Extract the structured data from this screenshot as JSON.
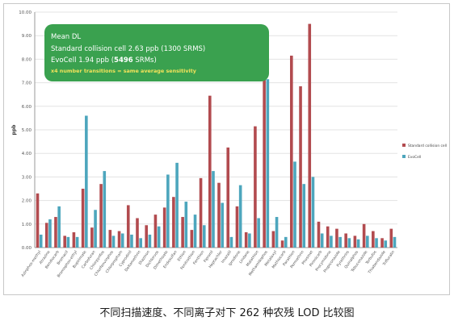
{
  "caption": "不同扫描速度、不同离子对下 262 种农残 LOD 比较图",
  "colors": {
    "series_standard": "#b24b4f",
    "series_evocell": "#4da6bd",
    "infobox_bg": "#3aa14f",
    "infobox_highlight": "#f2e25a",
    "gridline": "#e3e3e3",
    "axis_text": "#555555"
  },
  "infobox": {
    "line1": "Mean DL",
    "line2": "Standard collision cell 2.63 ppb (1300 SRMS)",
    "line3_prefix": "EvoCell 1.94 ppb (",
    "line3_bold": "5496",
    "line3_suffix": " SRMs)",
    "line4": "x4 number transitions = same average sensitivity"
  },
  "chart_data": {
    "type": "bar",
    "title": "",
    "xlabel": "",
    "ylabel": "ppb",
    "ylim": [
      0,
      10
    ],
    "ytick_step": 1,
    "grid": true,
    "legend_position": "right",
    "categories": [
      "Azinphos-methyl",
      "Atrazine",
      "Bendiocarb",
      "Bromacil",
      "Bromophos-ethyl",
      "Bupirimate",
      "Carbofuran",
      "Chlorpyrifos",
      "Chlorfenvinphos",
      "Chlorpropham",
      "Cyprodinil",
      "Deltamethrin",
      "Diazinon",
      "Dichlorvos",
      "Dimethoate",
      "Endosulfan",
      "Ethion",
      "Fenitrothion",
      "Fenthion",
      "Fipronil",
      "Heptachlor",
      "Imazalil",
      "Iprodione",
      "Lindane",
      "Malathion",
      "Methamidophos",
      "Metalaxyl",
      "Methiocarb",
      "Parathion",
      "Permethrin",
      "Phosmet",
      "Pirimicarb",
      "Procymidone",
      "Propiconazole",
      "Pyrethrins",
      "Quinalphos",
      "Tebuconazole",
      "Terbufos",
      "Thiabendazole",
      "Trifluralin"
    ],
    "series": [
      {
        "name": "Standard collision cell",
        "color": "#b24b4f",
        "values": [
          2.3,
          1.05,
          1.3,
          0.5,
          0.65,
          2.5,
          0.85,
          2.7,
          0.75,
          0.7,
          1.8,
          1.25,
          0.95,
          1.4,
          1.7,
          2.15,
          1.3,
          0.75,
          2.95,
          6.45,
          2.75,
          4.25,
          1.75,
          0.65,
          5.15,
          8.2,
          0.7,
          0.3,
          8.15,
          6.85,
          9.5,
          1.1,
          0.9,
          0.8,
          0.6,
          0.5,
          1.0,
          0.7,
          0.4,
          0.8
        ]
      },
      {
        "name": "EvoCell",
        "color": "#4da6bd",
        "values": [
          0.55,
          1.2,
          1.75,
          0.45,
          0.45,
          5.6,
          1.6,
          3.25,
          0.5,
          0.6,
          0.55,
          0.4,
          0.55,
          0.9,
          3.1,
          3.6,
          1.95,
          1.4,
          0.95,
          3.25,
          1.9,
          0.45,
          2.65,
          0.6,
          1.25,
          7.15,
          1.3,
          0.45,
          3.65,
          2.7,
          3.0,
          0.6,
          0.5,
          0.45,
          0.4,
          0.35,
          0.5,
          0.4,
          0.3,
          0.45
        ]
      }
    ]
  }
}
